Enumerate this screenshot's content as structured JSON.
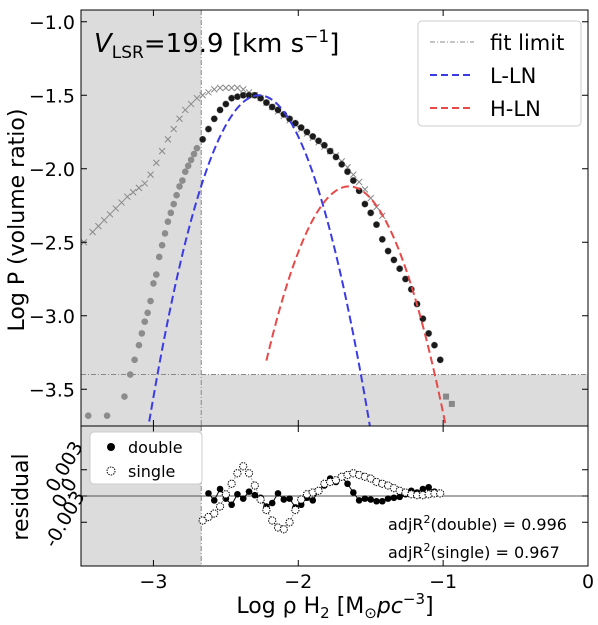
{
  "chart_data": [
    {
      "type": "line",
      "annotation_prefix": "V",
      "annotation_sub": "LSR",
      "annotation_rest": "=19.9 [km s",
      "annotation_sup": "−1",
      "annotation_close": "]",
      "ylabel": "Log P (volume ratio)",
      "xlim": [
        -3.5,
        0.0
      ],
      "ylim": [
        -3.75,
        -0.92
      ],
      "yticks": [
        "−1.0",
        "−1.5",
        "−2.0",
        "−2.5",
        "−3.0",
        "−3.5"
      ],
      "ytick_values": [
        -1.0,
        -1.5,
        -2.0,
        -2.5,
        -3.0,
        -3.5
      ],
      "fit_limit_x": -2.67,
      "fit_limit_y": -3.4,
      "legend": [
        "fit limit",
        "L-LN",
        "H-LN"
      ],
      "legend_position": "top-right",
      "colors": {
        "l_ln": "#3b3be6",
        "h_ln": "#e84a4a",
        "shade": "#dcdcdc",
        "fit": "#888888"
      },
      "series": [
        {
          "name": "L-LN",
          "kind": "gaussian",
          "amplitude": -1.5,
          "center": -2.27,
          "sigma": 0.36,
          "x_range": [
            -3.12,
            -1.37
          ]
        },
        {
          "name": "H-LN",
          "kind": "gaussian",
          "amplitude": -2.12,
          "center": -1.65,
          "sigma": 0.37,
          "x_range": [
            -2.22,
            -0.9
          ]
        }
      ],
      "crosses": {
        "x": [
          -3.48,
          -3.42,
          -3.38,
          -3.34,
          -3.3,
          -3.26,
          -3.22,
          -3.18,
          -3.14,
          -3.1,
          -3.06,
          -3.02,
          -2.98,
          -2.94,
          -2.9,
          -2.86,
          -2.82,
          -2.78,
          -2.74,
          -2.7,
          -2.66,
          -2.62,
          -2.58,
          -2.54,
          -2.5,
          -2.46,
          -2.42,
          -2.38,
          -2.34,
          -2.3,
          -2.26,
          -2.22,
          -2.18,
          -2.14,
          -2.1,
          -2.06,
          -2.02,
          -1.98,
          -1.94,
          -1.9,
          -1.86,
          -1.82,
          -1.78,
          -1.74,
          -1.7,
          -1.66,
          -1.62,
          -1.58,
          -1.54,
          -1.5,
          -1.46,
          -1.42
        ],
        "y": [
          -2.5,
          -2.43,
          -2.39,
          -2.35,
          -2.31,
          -2.27,
          -2.23,
          -2.19,
          -2.16,
          -2.13,
          -2.1,
          -2.04,
          -1.96,
          -1.88,
          -1.8,
          -1.73,
          -1.66,
          -1.6,
          -1.56,
          -1.52,
          -1.5,
          -1.48,
          -1.46,
          -1.45,
          -1.45,
          -1.45,
          -1.45,
          -1.46,
          -1.48,
          -1.5,
          -1.52,
          -1.55,
          -1.58,
          -1.61,
          -1.64,
          -1.67,
          -1.7,
          -1.73,
          -1.76,
          -1.79,
          -1.82,
          -1.85,
          -1.88,
          -1.91,
          -1.95,
          -1.99,
          -2.04,
          -2.09,
          -2.14,
          -2.2,
          -2.26,
          -2.32
        ]
      },
      "data_points": {
        "x": [
          -3.45,
          -3.32,
          -3.2,
          -3.16,
          -3.13,
          -3.1,
          -3.08,
          -3.06,
          -3.04,
          -3.02,
          -3.0,
          -2.98,
          -2.96,
          -2.94,
          -2.92,
          -2.9,
          -2.88,
          -2.86,
          -2.84,
          -2.82,
          -2.8,
          -2.78,
          -2.76,
          -2.74,
          -2.72,
          -2.7,
          -2.66,
          -2.62,
          -2.58,
          -2.54,
          -2.5,
          -2.46,
          -2.42,
          -2.38,
          -2.34,
          -2.3,
          -2.26,
          -2.22,
          -2.18,
          -2.14,
          -2.1,
          -2.06,
          -2.02,
          -1.98,
          -1.94,
          -1.9,
          -1.86,
          -1.82,
          -1.78,
          -1.74,
          -1.7,
          -1.66,
          -1.62,
          -1.58,
          -1.54,
          -1.5,
          -1.46,
          -1.42,
          -1.38,
          -1.34,
          -1.3,
          -1.26,
          -1.22,
          -1.18,
          -1.14,
          -1.1,
          -1.06,
          -1.02,
          -0.98,
          -0.94
        ],
        "y": [
          -3.68,
          -3.68,
          -3.55,
          -3.4,
          -3.3,
          -3.2,
          -3.12,
          -3.04,
          -2.98,
          -2.9,
          -2.78,
          -2.72,
          -2.6,
          -2.52,
          -2.44,
          -2.36,
          -2.3,
          -2.24,
          -2.18,
          -2.12,
          -2.08,
          -2.02,
          -1.98,
          -1.94,
          -1.9,
          -1.86,
          -1.8,
          -1.73,
          -1.66,
          -1.6,
          -1.56,
          -1.52,
          -1.51,
          -1.5,
          -1.5,
          -1.5,
          -1.52,
          -1.55,
          -1.58,
          -1.6,
          -1.63,
          -1.66,
          -1.69,
          -1.72,
          -1.75,
          -1.78,
          -1.81,
          -1.84,
          -1.88,
          -1.92,
          -1.97,
          -2.02,
          -2.08,
          -2.15,
          -2.24,
          -2.3,
          -2.38,
          -2.48,
          -2.56,
          -2.62,
          -2.68,
          -2.75,
          -2.82,
          -2.92,
          -3.02,
          -3.12,
          -3.2,
          -3.3,
          -3.55,
          -3.6
        ]
      }
    },
    {
      "type": "line",
      "ylabel": "residual",
      "xlabel_prefix": "Log   ρ H",
      "xlabel_sub": "2",
      "xlabel_bracket": " [M",
      "xlabel_sun_sub": "⊙",
      "xlabel_unit": "pc",
      "xlabel_sup": "−3",
      "xlabel_close": "]",
      "xlim": [
        -3.5,
        0.0
      ],
      "ylim": [
        -0.008,
        0.008
      ],
      "yticks": [
        "0.003",
        "0.0",
        "-0.003"
      ],
      "ytick_values": [
        0.003,
        0.0,
        -0.003
      ],
      "xticks": [
        "−3",
        "−2",
        "−1",
        "0"
      ],
      "xtick_values": [
        -3,
        -2,
        -1,
        0
      ],
      "fit_limit_x": -2.67,
      "legend": [
        "double",
        "single"
      ],
      "legend_position": "top-left",
      "adj_double_label": "adjR",
      "adj_double_sup": "2",
      "adj_double_value": "(double) = 0.996",
      "adj_single_label": "adjR",
      "adj_single_sup": "2",
      "adj_single_value": "(single)  = 0.967",
      "series": [
        {
          "name": "double",
          "x": [
            -2.62,
            -2.58,
            -2.54,
            -2.5,
            -2.46,
            -2.42,
            -2.38,
            -2.34,
            -2.3,
            -2.26,
            -2.22,
            -2.18,
            -2.14,
            -2.1,
            -2.06,
            -2.02,
            -1.98,
            -1.94,
            -1.9,
            -1.86,
            -1.82,
            -1.78,
            -1.74,
            -1.7,
            -1.66,
            -1.62,
            -1.58,
            -1.54,
            -1.5,
            -1.46,
            -1.42,
            -1.38,
            -1.34,
            -1.3,
            -1.26,
            -1.22,
            -1.18,
            -1.14,
            -1.1,
            -1.06
          ],
          "y": [
            0.0003,
            -0.0005,
            0.0008,
            -0.0003,
            -0.001,
            0.0002,
            -0.0003,
            0.0005,
            0.0001,
            -0.0002,
            -0.0012,
            -0.0008,
            0.0003,
            -0.0004,
            -0.0003,
            -0.0013,
            -0.001,
            -0.0002,
            -0.0005,
            0.0006,
            0.0012,
            0.002,
            0.0016,
            0.0022,
            0.0014,
            0.0004,
            -0.0005,
            -0.0003,
            -0.0004,
            -0.0006,
            -0.0006,
            -0.0003,
            -0.0002,
            -0.0001,
            0.0002,
            0.0006,
            0.0004,
            0.0008,
            0.001,
            0.0005
          ]
        },
        {
          "name": "single",
          "x": [
            -2.66,
            -2.62,
            -2.58,
            -2.54,
            -2.5,
            -2.46,
            -2.42,
            -2.38,
            -2.34,
            -2.3,
            -2.26,
            -2.22,
            -2.18,
            -2.14,
            -2.1,
            -2.06,
            -2.02,
            -1.98,
            -1.94,
            -1.9,
            -1.86,
            -1.82,
            -1.78,
            -1.74,
            -1.7,
            -1.66,
            -1.62,
            -1.58,
            -1.54,
            -1.5,
            -1.46,
            -1.42,
            -1.38,
            -1.34,
            -1.3,
            -1.26,
            -1.22,
            -1.18,
            -1.14,
            -1.1,
            -1.06,
            -1.02
          ],
          "y": [
            -0.0028,
            -0.0024,
            -0.002,
            -0.0012,
            0.0002,
            0.0014,
            0.0026,
            0.0034,
            0.0026,
            0.0012,
            -0.0004,
            -0.0016,
            -0.0028,
            -0.0036,
            -0.0038,
            -0.003,
            -0.0016,
            -0.0004,
            0.0002,
            0.0004,
            0.0006,
            0.0014,
            0.0016,
            0.0018,
            0.0022,
            0.0024,
            0.0026,
            0.0024,
            0.0022,
            0.002,
            0.0016,
            0.0014,
            0.0012,
            0.0009,
            0.0006,
            0.0004,
            0.0002,
            0.0001,
            0.0001,
            0.0002,
            0.0003,
            0.0003
          ]
        }
      ]
    }
  ]
}
